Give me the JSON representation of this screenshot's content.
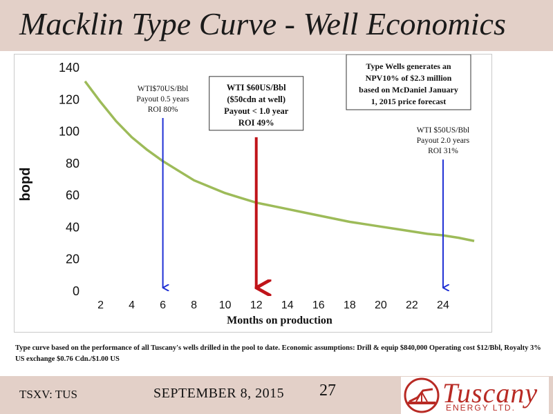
{
  "header": {
    "title": "Macklin Type Curve - Well Economics"
  },
  "chart_data": {
    "type": "line",
    "ylabel": "bopd",
    "xlabel": "Months on production",
    "ylim": [
      0,
      140
    ],
    "yticks": [
      0,
      20,
      40,
      60,
      80,
      100,
      120,
      140
    ],
    "xlim": [
      1,
      26
    ],
    "xticks": [
      2,
      4,
      6,
      8,
      10,
      12,
      14,
      16,
      18,
      20,
      22,
      24
    ],
    "grid": false,
    "series": [
      {
        "color": "#9dbb59",
        "x": [
          1,
          2,
          3,
          4,
          5,
          6,
          7,
          8,
          9,
          10,
          11,
          12,
          13,
          14,
          15,
          16,
          17,
          18,
          19,
          20,
          21,
          22,
          23,
          24,
          25,
          26
        ],
        "y": [
          131,
          118,
          106,
          96,
          88,
          81,
          75,
          69,
          65,
          61,
          58,
          55,
          53,
          51,
          49,
          47,
          45,
          43,
          41.5,
          40,
          38.5,
          37,
          35.5,
          34.5,
          33,
          31
        ]
      }
    ],
    "markers": [
      {
        "x": 6,
        "y_top": 108,
        "color": "#1f2fd4",
        "boxed": false,
        "lines": [
          "WTI$70US/Bbl",
          "Payout 0.5 years",
          "ROI  80%"
        ]
      },
      {
        "x": 12,
        "y_top": 96,
        "color": "#c0141a",
        "boxed": true,
        "lines": [
          "WTI $60US/Bbl",
          "($50cdn at well)",
          "Payout < 1.0 year",
          "ROI 49%"
        ]
      },
      {
        "x": 24,
        "y_top": 82,
        "color": "#1f2fd4",
        "boxed": false,
        "lines": [
          "WTI $50US/Bbl",
          "Payout 2.0 years",
          "ROI 31%"
        ]
      }
    ],
    "annotation_box": {
      "lines": [
        "Type Wells generates an",
        "NPV10% of $2.3 million",
        "based on McDaniel January",
        "1,  2015 price forecast"
      ]
    }
  },
  "footnote": "Type curve based on the performance of all Tuscany's wells drilled in the pool to date. Economic assumptions: Drill & equip $840,000 Operating cost $12/Bbl, Royalty 3% US exchange $0.76 Cdn./$1.00 US",
  "footer": {
    "ticker": "TSXV: TUS",
    "date": "SEPTEMBER 8, 2015",
    "page": "27"
  },
  "logo": {
    "name": "Tuscany",
    "sub": "ENERGY LTD.",
    "brand_color": "#b82a24"
  }
}
